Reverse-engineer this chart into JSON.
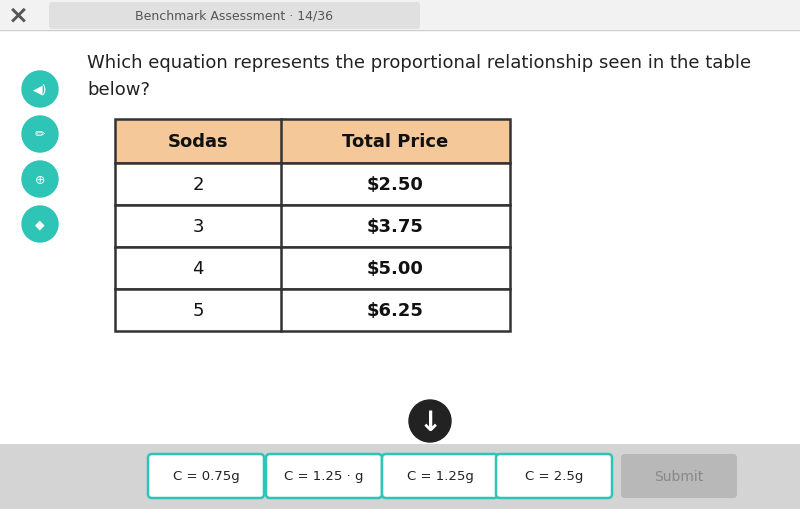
{
  "main_bg": "#ffffff",
  "header_text": "Benchmark Assessment · 14/36",
  "question_line1": "Which equation represents the proportional relationship seen in the table",
  "question_line2": "below?",
  "table_header_bg": "#f5c89a",
  "table_col1_header": "Sodas",
  "table_col2_header": "Total Price",
  "table_border_color": "#333333",
  "table_data": [
    [
      "2",
      "$2.50"
    ],
    [
      "3",
      "$3.75"
    ],
    [
      "4",
      "$5.00"
    ],
    [
      "5",
      "$6.25"
    ]
  ],
  "answer_choices": [
    "C = 0.75g",
    "C = 1.25 · g",
    "C = 1.25g",
    "C = 2.5g"
  ],
  "submit_text": "Submit",
  "teal_color": "#2ec4b6",
  "bottom_bar_color": "#d4d4d4",
  "answer_border_color": "#2ec4b6",
  "answer_bg_color": "#ffffff",
  "submit_bg_color": "#b8b8b8",
  "submit_text_color": "#888888",
  "header_bg_color": "#f2f2f2",
  "header_pill_color": "#e0e0e0",
  "separator_color": "#cccccc"
}
